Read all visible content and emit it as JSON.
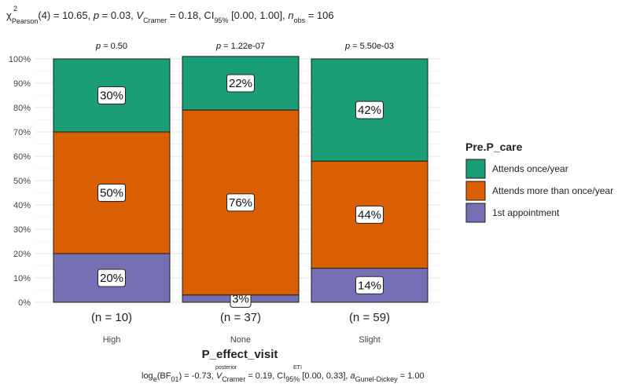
{
  "chart_data": {
    "type": "bar",
    "stacked": true,
    "percent": true,
    "title": "χ²Pearson(4) = 10.65, p = 0.03, V̂Cramer = 0.18, CI95% [0.00, 1.00], nobs = 106",
    "title_parts": {
      "stat": "(4) = 10.65, ",
      "p": "p",
      "p_val": " = 0.03, ",
      "v": "V",
      "v_sub": "Cramer",
      "v_val": " = 0.18, CI",
      "ci_sub": "95%",
      "ci_val": " [0.00, 1.00], ",
      "n": "n",
      "n_sub": "obs",
      "n_val": " = 106",
      "chi": "χ",
      "chi_sup": "2",
      "chi_sub": "Pearson"
    },
    "caption_parts": {
      "log": "log",
      "log_sub": "e",
      "bf": "(BF",
      "bf_sub": "01",
      "bf_val": ") = -0.73, ",
      "v": "V",
      "v_sup": "posterior",
      "v_sub": "Cramer",
      "v_val": " = 0.19, CI",
      "ci_sup": "ETI",
      "ci_sub": "95%",
      "ci_val": " [0.00, 0.33], ",
      "a": "a",
      "a_sub": "Gunel-Dickey",
      "a_val": " = 1.00"
    },
    "xlabel": "P_effect_visit",
    "ylabel": "",
    "ylim": [
      0,
      100
    ],
    "yticks": [
      "0%",
      "10%",
      "20%",
      "30%",
      "40%",
      "50%",
      "60%",
      "70%",
      "80%",
      "90%",
      "100%"
    ],
    "categories": [
      "High",
      "None",
      "Slight"
    ],
    "counts": [
      "(n = 10)",
      "(n = 37)",
      "(n = 59)"
    ],
    "pvalues": [
      "= 0.50",
      "= 1.22e-07",
      "= 5.50e-03"
    ],
    "p_label": "p",
    "legend": {
      "title": "Pre.P_care",
      "position": "right"
    },
    "series": [
      {
        "name": "1st appointment",
        "color": "#7570B3",
        "values": [
          20,
          3,
          14
        ],
        "labels": [
          "20%",
          "3%",
          "14%"
        ]
      },
      {
        "name": "Attends more than once/year",
        "color": "#D95F02",
        "values": [
          50,
          76,
          44
        ],
        "labels": [
          "50%",
          "76%",
          "44%"
        ]
      },
      {
        "name": "Attends once/year",
        "color": "#1B9E77",
        "values": [
          30,
          22,
          42
        ],
        "labels": [
          "30%",
          "22%",
          "42%"
        ]
      }
    ],
    "grid": true
  }
}
